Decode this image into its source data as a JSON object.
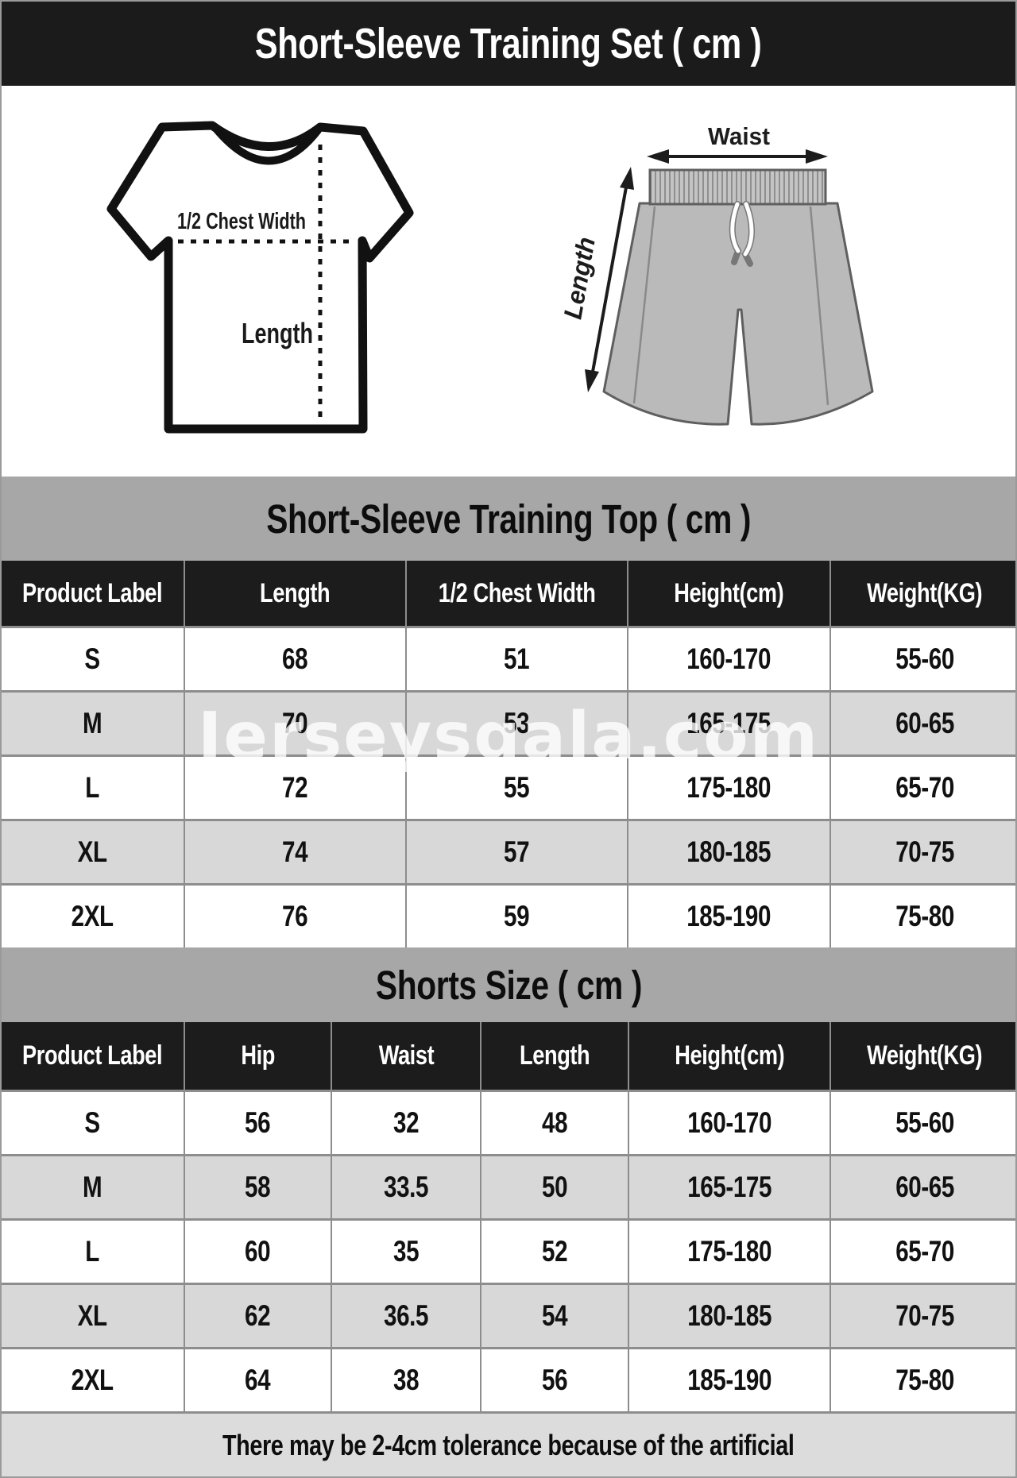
{
  "title": "Short-Sleeve Training Set ( cm )",
  "watermark": "Jerseysgala.com",
  "diagrams": {
    "tshirt": {
      "half_chest_label": "1/2 Chest Width",
      "length_label": "Length"
    },
    "shorts": {
      "waist_label": "Waist",
      "length_label": "Length"
    }
  },
  "top_table": {
    "section_title": "Short-Sleeve Training Top ( cm )",
    "headers": [
      "Product Label",
      "Length",
      "1/2 Chest Width",
      "Height(cm)",
      "Weight(KG)"
    ],
    "rows": [
      [
        "S",
        "68",
        "51",
        "160-170",
        "55-60"
      ],
      [
        "M",
        "70",
        "53",
        "165-175",
        "60-65"
      ],
      [
        "L",
        "72",
        "55",
        "175-180",
        "65-70"
      ],
      [
        "XL",
        "74",
        "57",
        "180-185",
        "70-75"
      ],
      [
        "2XL",
        "76",
        "59",
        "185-190",
        "75-80"
      ]
    ]
  },
  "shorts_table": {
    "section_title": "Shorts Size ( cm )",
    "headers": [
      "Product Label",
      "Hip",
      "Waist",
      "Length",
      "Height(cm)",
      "Weight(KG)"
    ],
    "rows": [
      [
        "S",
        "56",
        "32",
        "48",
        "160-170",
        "55-60"
      ],
      [
        "M",
        "58",
        "33.5",
        "50",
        "165-175",
        "60-65"
      ],
      [
        "L",
        "60",
        "35",
        "52",
        "175-180",
        "65-70"
      ],
      [
        "XL",
        "62",
        "36.5",
        "54",
        "180-185",
        "70-75"
      ],
      [
        "2XL",
        "64",
        "38",
        "56",
        "185-190",
        "75-80"
      ]
    ]
  },
  "footer_note": "There may be 2-4cm tolerance because of the artificial",
  "colors": {
    "title_bg": "#1b1b1b",
    "section_header_bg": "#a7a7a7",
    "table_header_bg": "#1c1c1c",
    "row_alt_bg": "#d8d8d8",
    "footer_bg": "#dcdcdc",
    "grid_line": "#8d8d8d",
    "shorts_fill": "#bababa",
    "watermark": "#ffffff"
  }
}
